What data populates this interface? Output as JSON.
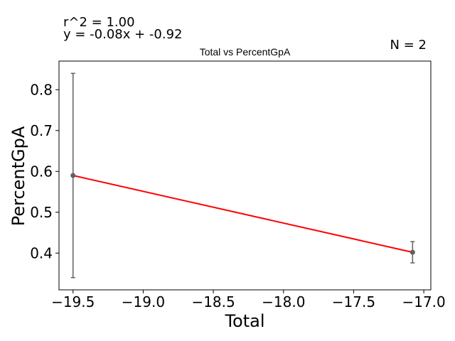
{
  "annotations": {
    "r2": "r^2 = 1.00",
    "equation": "y = -0.08x + -0.92",
    "n": "N = 2"
  },
  "chart_data": {
    "type": "scatter",
    "title": "Total vs PercentGpA",
    "xlabel": "Total",
    "ylabel": "PercentGpA",
    "xlim": [
      -19.6,
      -16.95
    ],
    "ylim": [
      0.31,
      0.87
    ],
    "xticks": [
      -19.5,
      -19.0,
      -18.5,
      -18.0,
      -17.5,
      -17.0
    ],
    "xtick_labels": [
      "−19.5",
      "−19.0",
      "−18.5",
      "−18.0",
      "−17.5",
      "−17.0"
    ],
    "yticks": [
      0.4,
      0.5,
      0.6,
      0.7,
      0.8
    ],
    "ytick_labels": [
      "0.4",
      "0.5",
      "0.6",
      "0.7",
      "0.8"
    ],
    "grid": false,
    "points": [
      {
        "x": -19.5,
        "y": 0.59,
        "err_low": 0.34,
        "err_high": 0.84
      },
      {
        "x": -17.08,
        "y": 0.402,
        "err_low": 0.376,
        "err_high": 0.428
      }
    ],
    "fit_line": {
      "x": [
        -19.5,
        -17.08
      ],
      "y": [
        0.59,
        0.402
      ]
    },
    "colors": {
      "points": "#606060",
      "errorbars": "#606060",
      "fit": "#ff0000"
    }
  }
}
